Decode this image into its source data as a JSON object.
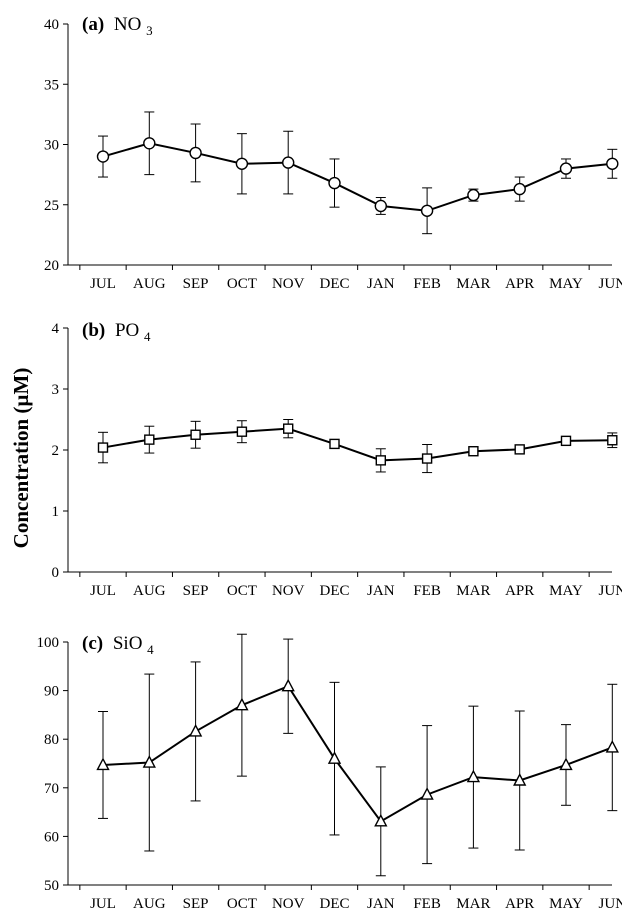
{
  "ylabel": "Concentration (µM)",
  "chart_data": [
    {
      "type": "line",
      "title": {
        "letter": "(a)",
        "species": "NO",
        "subscript": "3"
      },
      "categories": [
        "JUL",
        "AUG",
        "SEP",
        "OCT",
        "NOV",
        "DEC",
        "JAN",
        "FEB",
        "MAR",
        "APR",
        "MAY",
        "JUN"
      ],
      "ylim": [
        20,
        40
      ],
      "yticks": [
        "20",
        "25",
        "30",
        "35",
        "40"
      ],
      "marker": "circle",
      "series": [
        {
          "values": [
            29.0,
            30.1,
            29.3,
            28.4,
            28.5,
            26.8,
            24.9,
            24.5,
            25.8,
            26.3,
            28.0,
            28.4
          ],
          "error": [
            1.7,
            2.6,
            2.4,
            2.5,
            2.6,
            2.0,
            0.7,
            1.9,
            0.5,
            1.0,
            0.8,
            1.2
          ]
        }
      ]
    },
    {
      "type": "line",
      "title": {
        "letter": "(b)",
        "species": "PO",
        "subscript": "4"
      },
      "categories": [
        "JUL",
        "AUG",
        "SEP",
        "OCT",
        "NOV",
        "DEC",
        "JAN",
        "FEB",
        "MAR",
        "APR",
        "MAY",
        "JUN"
      ],
      "ylim": [
        0,
        4
      ],
      "yticks": [
        "0",
        "1",
        "2",
        "3",
        "4"
      ],
      "marker": "square",
      "series": [
        {
          "values": [
            2.04,
            2.17,
            2.25,
            2.3,
            2.35,
            2.1,
            1.83,
            1.86,
            1.98,
            2.01,
            2.15,
            2.16
          ],
          "error": [
            0.25,
            0.22,
            0.22,
            0.18,
            0.15,
            0.04,
            0.19,
            0.23,
            0.05,
            0.04,
            0.04,
            0.12
          ]
        }
      ]
    },
    {
      "type": "line",
      "title": {
        "letter": "(c)",
        "species": "SiO",
        "subscript": "4"
      },
      "categories": [
        "JUL",
        "AUG",
        "SEP",
        "OCT",
        "NOV",
        "DEC",
        "JAN",
        "FEB",
        "MAR",
        "APR",
        "MAY",
        "JUN"
      ],
      "ylim": [
        50,
        100
      ],
      "yticks": [
        "50",
        "60",
        "70",
        "80",
        "90",
        "100"
      ],
      "marker": "triangle",
      "series": [
        {
          "values": [
            74.7,
            75.2,
            81.6,
            87.0,
            90.9,
            76.0,
            63.1,
            68.6,
            72.2,
            71.5,
            74.7,
            78.3
          ],
          "error": [
            11.0,
            18.2,
            14.3,
            14.6,
            9.7,
            15.7,
            11.2,
            14.2,
            14.6,
            14.3,
            8.3,
            13.0
          ]
        }
      ]
    }
  ]
}
